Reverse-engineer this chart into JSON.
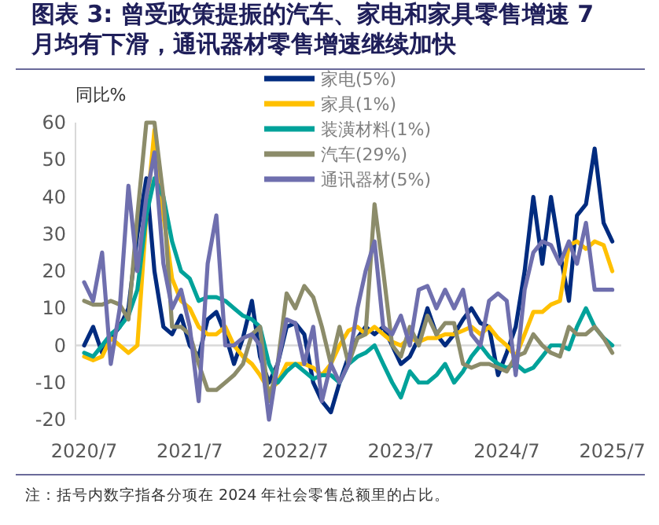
{
  "chart_data": {
    "type": "line",
    "title": "图表 3: 曾受政策提振的汽车、家电和家具零售增速 7 月均有下滑，通讯器材零售增速继续加快",
    "ylabel": "同比%",
    "x": [
      "2020-07",
      "2020-08",
      "2020-09",
      "2020-10",
      "2020-11",
      "2020-12",
      "2021-01",
      "2021-02",
      "2021-03",
      "2021-04",
      "2021-05",
      "2021-06",
      "2021-07",
      "2021-08",
      "2021-09",
      "2021-10",
      "2021-11",
      "2021-12",
      "2022-01",
      "2022-02",
      "2022-03",
      "2022-04",
      "2022-05",
      "2022-06",
      "2022-07",
      "2022-08",
      "2022-09",
      "2022-10",
      "2022-11",
      "2022-12",
      "2023-01",
      "2023-02",
      "2023-03",
      "2023-04",
      "2023-05",
      "2023-06",
      "2023-07",
      "2023-08",
      "2023-09",
      "2023-10",
      "2023-11",
      "2023-12",
      "2024-01",
      "2024-02",
      "2024-03",
      "2024-04",
      "2024-05",
      "2024-06",
      "2024-07",
      "2024-08",
      "2024-09",
      "2024-10",
      "2024-11",
      "2024-12",
      "2025-01",
      "2025-02",
      "2025-03",
      "2025-04",
      "2025-05",
      "2025-06",
      "2025-07"
    ],
    "series": [
      {
        "name": "家电(5%)",
        "color": "#002b7f",
        "values": [
          0,
          5,
          -2,
          2,
          5,
          10,
          30,
          45,
          20,
          5,
          3,
          8,
          0,
          -3,
          7,
          9,
          3,
          -5,
          2,
          12,
          -3,
          -10,
          -5,
          5,
          6,
          3,
          -10,
          -15,
          -18,
          -10,
          -3,
          2,
          5,
          3,
          5,
          0,
          -5,
          -3,
          2,
          10,
          3,
          0,
          3,
          7,
          10,
          6,
          5,
          -8,
          -2,
          5,
          20,
          40,
          22,
          40,
          25,
          12,
          35,
          38,
          53,
          33,
          28
        ]
      },
      {
        "name": "家具(1%)",
        "color": "#ffc000",
        "values": [
          -3,
          -4,
          -3,
          2,
          0,
          -2,
          0,
          35,
          58,
          35,
          18,
          12,
          10,
          5,
          3,
          3,
          5,
          0,
          -3,
          -5,
          -8,
          -12,
          -10,
          -5,
          -5,
          -5,
          -6,
          -8,
          -5,
          0,
          4,
          5,
          3,
          5,
          3,
          1,
          0,
          2,
          1,
          2,
          2,
          3,
          3,
          4,
          5,
          3,
          5,
          2,
          0,
          -3,
          3,
          9,
          9,
          11,
          12,
          27,
          28,
          26,
          28,
          27,
          20
        ]
      },
      {
        "name": "装潢材料(1%)",
        "color": "#00a29a",
        "values": [
          -2,
          -3,
          0,
          3,
          5,
          8,
          15,
          35,
          45,
          40,
          28,
          20,
          18,
          12,
          13,
          13,
          12,
          10,
          8,
          7,
          5,
          -5,
          -10,
          -7,
          -5,
          -7,
          -9,
          -8,
          -8,
          -10,
          -5,
          -3,
          -2,
          0,
          -5,
          -10,
          -14,
          -7,
          -10,
          -10,
          -8,
          -5,
          -10,
          -7,
          -3,
          0,
          -3,
          -5,
          -6,
          -5,
          -7,
          -6,
          -3,
          0,
          0,
          -1,
          5,
          10,
          5,
          2,
          0
        ]
      },
      {
        "name": "汽车(29%)",
        "color": "#8c8c6a",
        "values": [
          12,
          11,
          11,
          12,
          11,
          7,
          35,
          60,
          60,
          40,
          5,
          5,
          3,
          -5,
          -12,
          -12,
          -10,
          -8,
          -5,
          3,
          5,
          -15,
          -5,
          14,
          10,
          16,
          13,
          5,
          -5,
          5,
          -5,
          2,
          3,
          38,
          20,
          0,
          -3,
          5,
          0,
          8,
          3,
          6,
          6,
          -5,
          -6,
          -5,
          -5,
          -6,
          -7,
          -3,
          -2,
          3,
          0,
          -2,
          -3,
          5,
          3,
          3,
          5,
          2,
          -2
        ]
      },
      {
        "name": "通讯器材(5%)",
        "color": "#6f6fae",
        "values": [
          17,
          12,
          25,
          -5,
          10,
          43,
          20,
          40,
          52,
          22,
          10,
          15,
          5,
          -15,
          22,
          35,
          0,
          0,
          2,
          3,
          0,
          -20,
          -5,
          7,
          6,
          -5,
          5,
          -15,
          -5,
          -10,
          -5,
          10,
          20,
          28,
          5,
          3,
          8,
          0,
          15,
          16,
          10,
          15,
          10,
          15,
          3,
          0,
          12,
          14,
          12,
          -8,
          15,
          25,
          28,
          27,
          22,
          28,
          22,
          33,
          15,
          15,
          15
        ]
      }
    ],
    "ylim": [
      -20,
      60
    ],
    "yticks": [
      -20,
      -10,
      0,
      10,
      20,
      30,
      40,
      50,
      60
    ],
    "xlim": [
      "2020-06",
      "2025-08"
    ],
    "xticks": [
      {
        "value": "2020-07",
        "label": "2020/7"
      },
      {
        "value": "2021-07",
        "label": "2021/7"
      },
      {
        "value": "2022-07",
        "label": "2022/7"
      },
      {
        "value": "2023-07",
        "label": "2023/7"
      },
      {
        "value": "2024-07",
        "label": "2024/7"
      },
      {
        "value": "2025-07",
        "label": "2025/7"
      }
    ],
    "ref_lines": [
      {
        "axis": "y",
        "value": 0,
        "color": "#d9d9d9"
      }
    ],
    "legend": "top",
    "annotations": [
      "注：括号内数字指各分项在 2024 年社会零售总额里的占比。"
    ]
  }
}
